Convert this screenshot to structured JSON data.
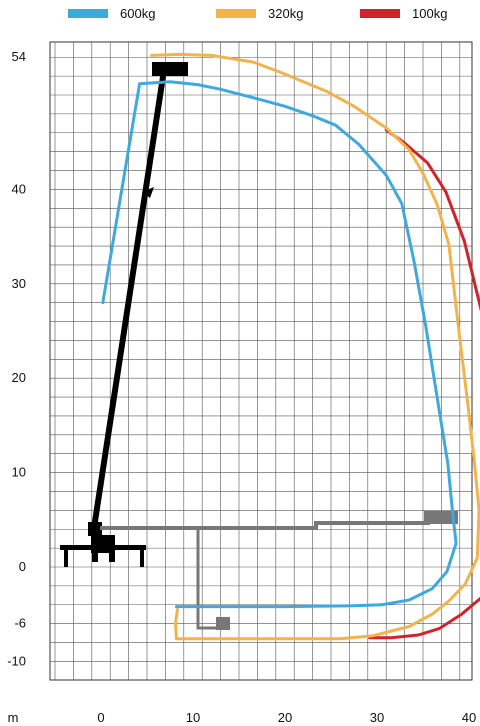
{
  "chart_data": {
    "type": "line",
    "title": "",
    "xlabel": "m",
    "ylabel": "",
    "xlim": [
      -5,
      40
    ],
    "ylim": [
      -12,
      56
    ],
    "grid": true,
    "legend_position": "top",
    "x_ticks": [
      0,
      10,
      20,
      30,
      40
    ],
    "y_ticks": [
      54,
      40,
      30,
      20,
      10,
      0,
      -6,
      -10
    ],
    "series": [
      {
        "name": "600kg",
        "color": "#3fa9dc",
        "x": [
          0.2,
          4.2,
          7.5,
          10.5,
          13,
          17,
          20,
          23,
          25.5,
          28,
          31,
          32.7,
          34,
          35.3,
          36.7,
          37.7,
          38.2,
          38.6,
          37.6,
          36,
          33.5,
          30.5,
          27.5,
          20,
          8.2
        ],
        "y": [
          28,
          51.2,
          51.4,
          51.1,
          50.6,
          49.6,
          48.8,
          47.8,
          46.8,
          44.8,
          41.5,
          38.5,
          32.5,
          25.5,
          17,
          11,
          6,
          2.5,
          -0.5,
          -2.3,
          -3.5,
          -4,
          -4.1,
          -4.2,
          -4.2
        ]
      },
      {
        "name": "320kg",
        "color": "#f2b34d",
        "x": [
          5.5,
          8.5,
          12,
          16.5,
          19.5,
          24.5,
          27.5,
          31,
          33.5,
          35,
          36.5,
          37.8,
          38.9,
          39.9,
          40.6,
          41.1,
          40.9,
          39.6,
          37.8,
          36,
          33.5,
          29.5,
          26,
          20,
          13,
          8.2,
          8.1,
          8.3
        ],
        "y": [
          54.2,
          54.3,
          54.2,
          53.5,
          52.4,
          50.4,
          48.8,
          46.5,
          44.2,
          41.7,
          38.5,
          34.2,
          25,
          17,
          11,
          6,
          1,
          -1.8,
          -3.6,
          -5,
          -6.3,
          -7.3,
          -7.6,
          -7.6,
          -7.6,
          -7.6,
          -6,
          -4.5
        ]
      },
      {
        "name": "100kg",
        "color": "#d2232a",
        "x": [
          31,
          33,
          35.5,
          37.5,
          39.5,
          41.5,
          43.1,
          44.3,
          44.6,
          44.3,
          43.3,
          41.4,
          39.2,
          36.8,
          34.5,
          31.5,
          29.2
        ],
        "y": [
          46.3,
          44.9,
          42.8,
          39.7,
          34.5,
          26.5,
          17,
          9,
          6,
          2,
          -1,
          -3.2,
          -5,
          -6.5,
          -7.2,
          -7.5,
          -7.5
        ]
      }
    ]
  }
}
